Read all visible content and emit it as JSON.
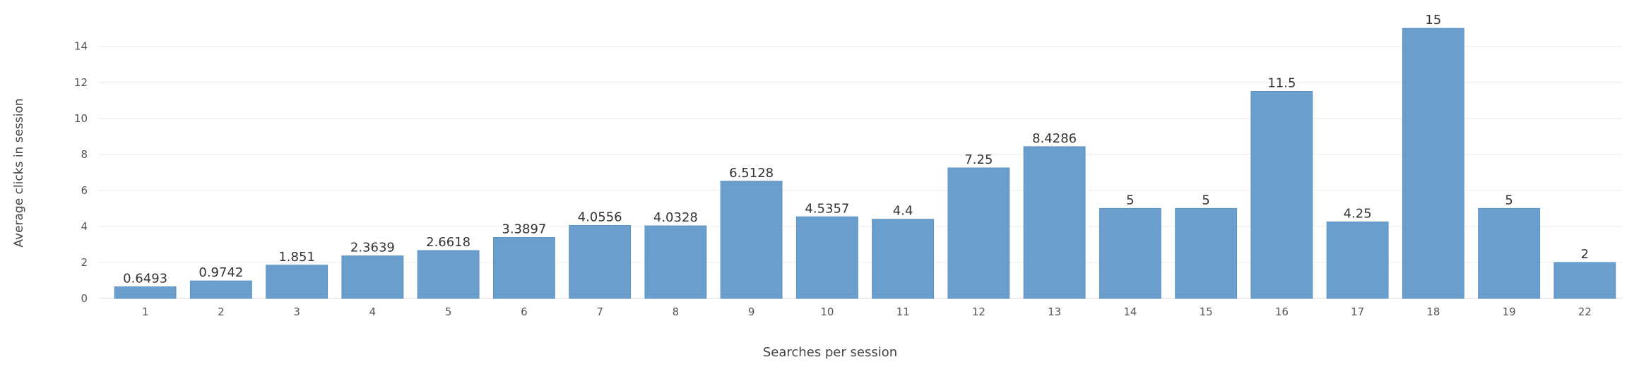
{
  "chart_data": {
    "type": "bar",
    "title": "",
    "xlabel": "Searches per session",
    "ylabel": "Average clicks in session",
    "categories": [
      "1",
      "2",
      "3",
      "4",
      "5",
      "6",
      "7",
      "8",
      "9",
      "10",
      "11",
      "12",
      "13",
      "14",
      "15",
      "16",
      "17",
      "18",
      "19",
      "22"
    ],
    "values": [
      0.6493,
      0.9742,
      1.851,
      2.3639,
      2.6618,
      3.3897,
      4.0556,
      4.0328,
      6.5128,
      4.5357,
      4.4,
      7.25,
      8.4286,
      5,
      5,
      11.5,
      4.25,
      15,
      5,
      2
    ],
    "value_labels": [
      "0.6493",
      "0.9742",
      "1.851",
      "2.3639",
      "2.6618",
      "3.3897",
      "4.0556",
      "4.0328",
      "6.5128",
      "4.5357",
      "4.4",
      "7.25",
      "8.4286",
      "5",
      "5",
      "11.5",
      "4.25",
      "15",
      "5",
      "2"
    ],
    "yticks": [
      0,
      2,
      4,
      6,
      8,
      10,
      12,
      14
    ],
    "ylim": [
      0,
      15.4
    ],
    "grid": true,
    "legend": "none",
    "colors": {
      "bar": "#6a9fcd",
      "bar_stroke": "#5e92c2",
      "grid": "#ececec",
      "axis_text": "#555555",
      "label_text": "#333333"
    }
  }
}
